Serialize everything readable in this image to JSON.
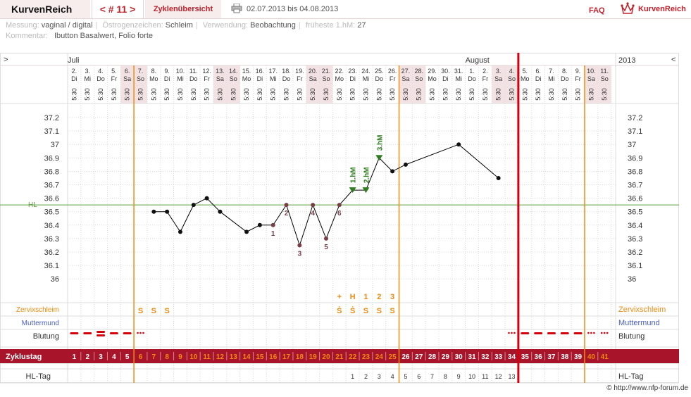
{
  "header": {
    "brand": "KurvenReich",
    "cycle_nav": "< # 11 >",
    "overview_tab": "Zyklenübersicht",
    "date_range": "02.07.2013 bis 04.08.2013",
    "faq": "FAQ",
    "logo_text": "KurvenReich",
    "print_icon": "printer-icon",
    "logo_icon": "crown-icon"
  },
  "info": {
    "messung_label": "Messung:",
    "messung_value": "vaginal / digital",
    "oestrogen_label": "Östrogenzeichen:",
    "oestrogen_value": "Schleim",
    "verwendung_label": "Verwendung:",
    "verwendung_value": "Beobachtung",
    "frueheste_label": "früheste 1.hM:",
    "frueheste_value": "27",
    "kommentar_label": "Kommentar:",
    "kommentar_value": "Ibutton Basalwert, Folio forte"
  },
  "nav": {
    "left": ">",
    "right": "<",
    "year": "2013"
  },
  "months": [
    {
      "label": "Juli",
      "col": 0
    },
    {
      "label": "August",
      "col": 30
    }
  ],
  "colors": {
    "line": "#000000",
    "mark_red": "#7a3e48",
    "mark_green": "#2e7d1e",
    "orange": "#f08a10",
    "red": "#d4000c",
    "bar": "#a8142a",
    "hl": "#5a9e3a",
    "muttermund": "#4a5fc2"
  },
  "chart_data": {
    "type": "line",
    "x_label_days": [
      "2.",
      "3.",
      "4.",
      "5.",
      "6.",
      "7.",
      "8.",
      "9.",
      "10.",
      "11.",
      "12.",
      "13.",
      "14.",
      "15.",
      "16.",
      "17.",
      "18.",
      "19.",
      "20.",
      "21.",
      "22.",
      "23.",
      "24.",
      "25.",
      "26.",
      "27.",
      "28.",
      "29.",
      "30.",
      "31.",
      "1.",
      "2.",
      "3.",
      "4.",
      "5.",
      "6.",
      "7.",
      "8.",
      "9.",
      "10.",
      "11."
    ],
    "x_label_weekdays": [
      "Di",
      "Mi",
      "Do",
      "Fr",
      "Sa",
      "So",
      "Mo",
      "Di",
      "Mi",
      "Do",
      "Fr",
      "Sa",
      "So",
      "Mo",
      "Di",
      "Mi",
      "Do",
      "Fr",
      "Sa",
      "So",
      "Mo",
      "Di",
      "Mi",
      "Do",
      "Fr",
      "Sa",
      "So",
      "Mo",
      "Di",
      "Mi",
      "Do",
      "Fr",
      "Sa",
      "So",
      "Mo",
      "Di",
      "Mi",
      "Do",
      "Fr",
      "Sa",
      "So"
    ],
    "weekend": [
      false,
      false,
      false,
      false,
      true,
      true,
      false,
      false,
      false,
      false,
      false,
      true,
      true,
      false,
      false,
      false,
      false,
      false,
      true,
      true,
      false,
      false,
      false,
      false,
      false,
      true,
      true,
      false,
      false,
      false,
      false,
      false,
      true,
      true,
      false,
      false,
      false,
      false,
      false,
      true,
      true
    ],
    "times": [
      "5:30",
      "5:30",
      "5:30",
      "5:30",
      "5:30",
      "5:30",
      "5:30",
      "5:30",
      "5:30",
      "5:30",
      "5:30",
      "5:30",
      "5:30",
      "5:30",
      "5:30",
      "5:30",
      "5:30",
      "5:30",
      "5:30",
      "5:30",
      "5:30",
      "5:30",
      "5:30",
      "5:30",
      "5:30",
      "5:30",
      "5:30",
      "5:30",
      "5:30",
      "5:30",
      "5:30",
      "5:30",
      "5:30",
      "5:30",
      "5:30",
      "5:30",
      "5:30",
      "5:30",
      "5:30",
      "5:30",
      "5:30"
    ],
    "y_ticks": [
      37.2,
      37.1,
      37,
      36.9,
      36.8,
      36.7,
      36.6,
      36.5,
      36.4,
      36.3,
      36.2,
      36.1,
      36
    ],
    "y_tick_labels": [
      "37.2",
      "37.1",
      "37",
      "36.9",
      "36.8",
      "36.7",
      "36.6",
      "36.5",
      "36.4",
      "36.3",
      "36.2",
      "36.1",
      "36"
    ],
    "ylim": [
      36,
      37.2
    ],
    "values": [
      null,
      null,
      null,
      null,
      null,
      null,
      36.5,
      36.5,
      36.35,
      36.55,
      36.6,
      36.5,
      null,
      36.35,
      36.4,
      36.4,
      36.55,
      36.25,
      36.55,
      36.3,
      36.55,
      36.66,
      36.66,
      36.9,
      36.8,
      36.85,
      null,
      null,
      null,
      37.0,
      null,
      null,
      36.75,
      null,
      null,
      null,
      null,
      null,
      null,
      null,
      null
    ],
    "markers": [
      null,
      null,
      null,
      null,
      null,
      null,
      "dot",
      "dot",
      "dot",
      "dot",
      "dot",
      "dot",
      null,
      "dot",
      "dot",
      "low",
      "low",
      "low",
      "low",
      "low",
      "low",
      "hm",
      "hm",
      "hm",
      "dot",
      "dot",
      null,
      null,
      null,
      "dot",
      null,
      null,
      "dot",
      null,
      null,
      null,
      null,
      null,
      null,
      null,
      null
    ],
    "low_labels": [
      {
        "day": 15,
        "text": "1",
        "pos": "below"
      },
      {
        "day": 16,
        "text": "2",
        "pos": "below"
      },
      {
        "day": 17,
        "text": "3",
        "pos": "below"
      },
      {
        "day": 18,
        "text": "4",
        "pos": "below"
      },
      {
        "day": 19,
        "text": "5",
        "pos": "below"
      },
      {
        "day": 20,
        "text": "6",
        "pos": "below"
      }
    ],
    "hm_labels": [
      {
        "day": 21,
        "text": "1.hM"
      },
      {
        "day": 22,
        "text": "2.hM"
      },
      {
        "day": 23,
        "text": "3.hM"
      }
    ],
    "hl_value": 36.55,
    "hl_label": "HL",
    "vlines_orange": [
      4.5,
      24.5,
      38.5
    ],
    "vline_red": 33.5,
    "rows": {
      "zervix_label": "Zervixschleim",
      "zervix": [
        "",
        "",
        "",
        "",
        "",
        "S",
        "S",
        "S",
        "",
        "",
        "",
        "",
        "",
        "",
        "",
        "",
        "",
        "",
        "",
        "",
        "Ṡ",
        "Ṡ",
        "S",
        "S",
        "S",
        "",
        "",
        "",
        "",
        "",
        "",
        "",
        "",
        "",
        "",
        "",
        "",
        "",
        "",
        "",
        ""
      ],
      "zervix_top": [
        "",
        "",
        "",
        "",
        "",
        "",
        "",
        "",
        "",
        "",
        "",
        "",
        "",
        "",
        "",
        "",
        "",
        "",
        "",
        "",
        "+",
        "H",
        "1",
        "2",
        "3",
        "",
        "",
        "",
        "",
        "",
        "",
        "",
        "",
        "",
        "",
        "",
        "",
        "",
        "",
        "",
        ""
      ],
      "muttermund_label": "Muttermund",
      "blutung_label": "Blutung",
      "blutung": [
        "line",
        "line",
        "thick",
        "line",
        "line",
        "dots",
        "",
        "",
        "",
        "",
        "",
        "",
        "",
        "",
        "",
        "",
        "",
        "",
        "",
        "",
        "",
        "",
        "",
        "",
        "",
        "",
        "",
        "",
        "",
        "",
        "",
        "",
        "",
        "dots",
        "line",
        "line",
        "line",
        "line",
        "line",
        "dots",
        "dots"
      ],
      "zyklustag_label": "Zyklustag",
      "zyklustag": [
        "1",
        "2",
        "3",
        "4",
        "5",
        "6",
        "7",
        "8",
        "9",
        "10",
        "11",
        "12",
        "13",
        "14",
        "15",
        "16",
        "17",
        "18",
        "19",
        "20",
        "21",
        "22",
        "23",
        "24",
        "25",
        "26",
        "27",
        "28",
        "29",
        "30",
        "31",
        "32",
        "33",
        "34",
        "35",
        "36",
        "37",
        "38",
        "39",
        "40",
        "41"
      ],
      "hltag_label": "HL-Tag",
      "hltag": [
        "",
        "",
        "",
        "",
        "",
        "",
        "",
        "",
        "",
        "",
        "",
        "",
        "",
        "",
        "",
        "",
        "",
        "",
        "",
        "",
        "",
        "1",
        "2",
        "3",
        "4",
        "5",
        "6",
        "7",
        "8",
        "9",
        "10",
        "11",
        "12",
        "13",
        "",
        "",
        "",
        "",
        "",
        "",
        ""
      ]
    }
  },
  "footer": {
    "copyright": "© http://www.nfp-forum.de"
  }
}
